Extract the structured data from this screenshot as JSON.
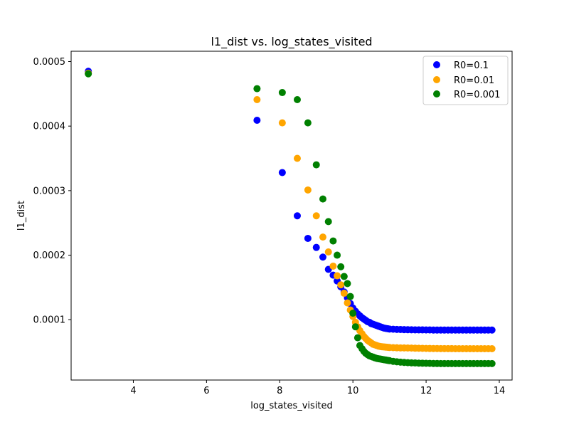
{
  "chart_data": {
    "type": "scatter",
    "title": "l1_dist vs. log_states_visited",
    "xlabel": "log_states_visited",
    "ylabel": "l1_dist",
    "xlim": [
      2.3,
      14.35
    ],
    "ylim": [
      6.5e-06,
      0.000516
    ],
    "xticks": [
      4,
      6,
      8,
      10,
      12,
      14
    ],
    "xtick_labels": [
      "4",
      "6",
      "8",
      "10",
      "12",
      "14"
    ],
    "yticks": [
      0.0001,
      0.0002,
      0.0003,
      0.0004,
      0.0005
    ],
    "ytick_labels": [
      "0.0001",
      "0.0002",
      "0.0003",
      "0.0004",
      "0.0005"
    ],
    "grid": false,
    "legend_position": "top-right",
    "series": [
      {
        "name": "R0=0.1",
        "color": "#0000ff",
        "x": [
          2.77,
          7.38,
          8.07,
          8.48,
          8.77,
          9.0,
          9.18,
          9.33,
          9.46,
          9.57,
          9.67,
          9.76,
          9.85,
          9.93,
          10.0,
          10.07,
          10.13,
          10.19,
          10.25,
          10.3,
          10.35,
          10.4,
          10.45,
          10.5,
          10.55,
          10.6,
          10.65,
          10.7,
          10.75,
          10.8,
          10.85,
          10.9,
          10.95,
          11.0,
          11.1,
          11.2,
          11.3,
          11.4,
          11.5,
          11.6,
          11.7,
          11.8,
          11.9,
          12.0,
          12.1,
          12.2,
          12.3,
          12.4,
          12.5,
          12.6,
          12.7,
          12.8,
          12.9,
          13.0,
          13.1,
          13.2,
          13.3,
          13.4,
          13.5,
          13.6,
          13.7,
          13.8
        ],
        "y": [
          0.000485,
          0.000409,
          0.000328,
          0.000261,
          0.000226,
          0.000212,
          0.000197,
          0.000178,
          0.000169,
          0.00016,
          0.000151,
          0.000143,
          0.000134,
          0.000125,
          0.000118,
          0.000113,
          0.000109,
          0.000106,
          0.000103,
          0.000101,
          9.9e-05,
          9.7e-05,
          9.6e-05,
          9.4e-05,
          9.3e-05,
          9.2e-05,
          9.1e-05,
          9e-05,
          8.9e-05,
          8.8e-05,
          8.7e-05,
          8.65e-05,
          8.6e-05,
          8.55e-05,
          8.52e-05,
          8.5e-05,
          8.48e-05,
          8.46e-05,
          8.45e-05,
          8.44e-05,
          8.43e-05,
          8.42e-05,
          8.42e-05,
          8.41e-05,
          8.41e-05,
          8.4e-05,
          8.4e-05,
          8.4e-05,
          8.4e-05,
          8.4e-05,
          8.4e-05,
          8.4e-05,
          8.4e-05,
          8.4e-05,
          8.4e-05,
          8.4e-05,
          8.4e-05,
          8.4e-05,
          8.4e-05,
          8.4e-05,
          8.4e-05,
          8.4e-05
        ]
      },
      {
        "name": "R0=0.01",
        "color": "#ffa500",
        "x": [
          2.77,
          7.38,
          8.07,
          8.48,
          8.77,
          9.0,
          9.18,
          9.33,
          9.46,
          9.57,
          9.67,
          9.76,
          9.85,
          9.93,
          10.0,
          10.07,
          10.13,
          10.19,
          10.25,
          10.3,
          10.35,
          10.4,
          10.45,
          10.5,
          10.55,
          10.6,
          10.65,
          10.7,
          10.75,
          10.8,
          10.85,
          10.9,
          10.95,
          11.0,
          11.1,
          11.2,
          11.3,
          11.4,
          11.5,
          11.6,
          11.7,
          11.8,
          11.9,
          12.0,
          12.1,
          12.2,
          12.3,
          12.4,
          12.5,
          12.6,
          12.7,
          12.8,
          12.9,
          13.0,
          13.1,
          13.2,
          13.3,
          13.4,
          13.5,
          13.6,
          13.7,
          13.8
        ],
        "y": [
          0.000482,
          0.000441,
          0.000405,
          0.00035,
          0.000301,
          0.000261,
          0.000228,
          0.000205,
          0.000183,
          0.000168,
          0.000154,
          0.000141,
          0.000126,
          0.000115,
          0.000105,
          9.6e-05,
          8.9e-05,
          8.3e-05,
          7.8e-05,
          7.4e-05,
          7.1e-05,
          6.8e-05,
          6.6e-05,
          6.4e-05,
          6.2e-05,
          6.1e-05,
          6e-05,
          5.9e-05,
          5.85e-05,
          5.8e-05,
          5.78e-05,
          5.75e-05,
          5.72e-05,
          5.7e-05,
          5.67e-05,
          5.65e-05,
          5.63e-05,
          5.62e-05,
          5.61e-05,
          5.6e-05,
          5.58e-05,
          5.57e-05,
          5.56e-05,
          5.55e-05,
          5.54e-05,
          5.53e-05,
          5.53e-05,
          5.52e-05,
          5.52e-05,
          5.51e-05,
          5.51e-05,
          5.5e-05,
          5.5e-05,
          5.5e-05,
          5.5e-05,
          5.5e-05,
          5.5e-05,
          5.5e-05,
          5.5e-05,
          5.5e-05,
          5.5e-05,
          5.5e-05
        ]
      },
      {
        "name": "R0=0.001",
        "color": "#008000",
        "x": [
          2.77,
          7.38,
          8.07,
          8.48,
          8.77,
          9.0,
          9.18,
          9.33,
          9.46,
          9.57,
          9.67,
          9.76,
          9.85,
          9.93,
          10.0,
          10.07,
          10.13,
          10.19,
          10.25,
          10.3,
          10.35,
          10.4,
          10.45,
          10.5,
          10.55,
          10.6,
          10.65,
          10.7,
          10.75,
          10.8,
          10.85,
          10.9,
          10.95,
          11.0,
          11.1,
          11.2,
          11.3,
          11.4,
          11.5,
          11.6,
          11.7,
          11.8,
          11.9,
          12.0,
          12.1,
          12.2,
          12.3,
          12.4,
          12.5,
          12.6,
          12.7,
          12.8,
          12.9,
          13.0,
          13.1,
          13.2,
          13.3,
          13.4,
          13.5,
          13.6,
          13.7,
          13.8
        ],
        "y": [
          0.000481,
          0.000458,
          0.000452,
          0.000441,
          0.000405,
          0.00034,
          0.000287,
          0.000252,
          0.000222,
          0.0002,
          0.000182,
          0.000167,
          0.000156,
          0.000136,
          0.00011,
          8.9e-05,
          7.2e-05,
          6e-05,
          5.5e-05,
          5.1e-05,
          4.8e-05,
          4.6e-05,
          4.4e-05,
          4.3e-05,
          4.2e-05,
          4.1e-05,
          4e-05,
          3.95e-05,
          3.9e-05,
          3.85e-05,
          3.8e-05,
          3.75e-05,
          3.7e-05,
          3.65e-05,
          3.55e-05,
          3.48e-05,
          3.42e-05,
          3.38e-05,
          3.34e-05,
          3.31e-05,
          3.29e-05,
          3.27e-05,
          3.25e-05,
          3.24e-05,
          3.23e-05,
          3.22e-05,
          3.21e-05,
          3.2e-05,
          3.2e-05,
          3.2e-05,
          3.2e-05,
          3.2e-05,
          3.2e-05,
          3.2e-05,
          3.2e-05,
          3.2e-05,
          3.2e-05,
          3.2e-05,
          3.2e-05,
          3.2e-05,
          3.2e-05,
          3.2e-05
        ]
      }
    ]
  }
}
